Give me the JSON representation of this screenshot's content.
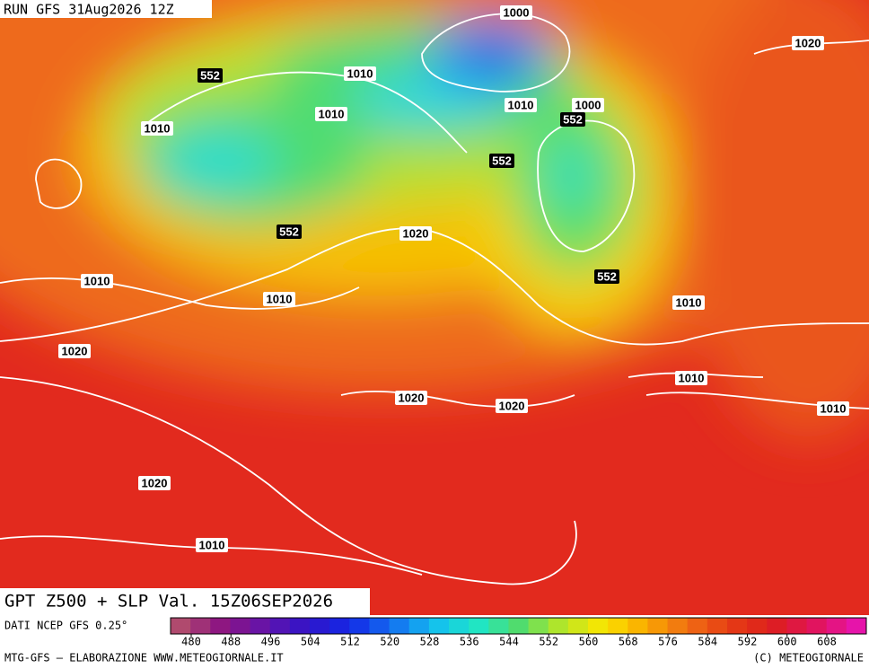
{
  "header": {
    "run": "RUN GFS 31Aug2026 12Z"
  },
  "map": {
    "labels": [
      552,
      1010,
      1000,
      1020,
      1010,
      1010,
      1000,
      552,
      1010,
      552,
      552,
      1020,
      1010,
      1010,
      552,
      1010,
      1020,
      1010,
      1020,
      1020,
      1010,
      1020,
      1010
    ]
  },
  "footer": {
    "title": "GPT Z500 + SLP Val. 15Z06SEP2026",
    "source": "DATI NCEP GFS 0.25°",
    "credit": "MTG-GFS — ELABORAZIONE WWW.METEOGIORNALE.IT",
    "copyright": "(C) METEOGIORNALE"
  },
  "colorbar": {
    "ticks": [
      480,
      488,
      496,
      504,
      512,
      520,
      528,
      536,
      544,
      552,
      560,
      568,
      576,
      584,
      592,
      600,
      608
    ]
  }
}
